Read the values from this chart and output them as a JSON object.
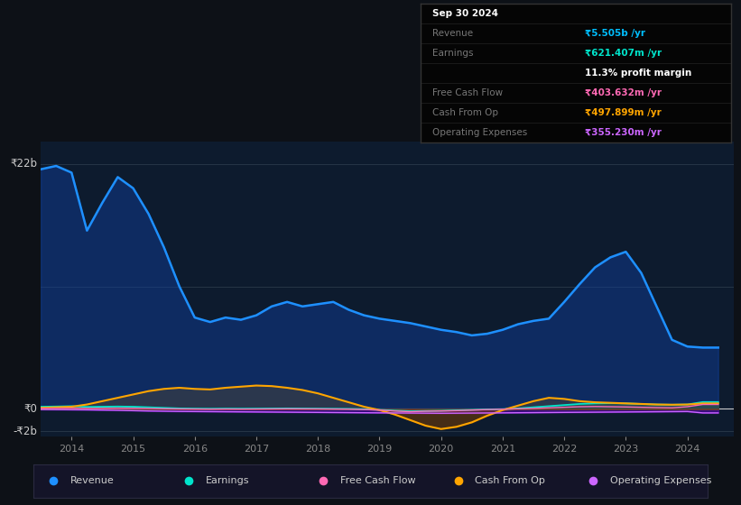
{
  "background_color": "#0d1117",
  "plot_bg_color": "#0d1b2e",
  "ylabel_top": "₹22b",
  "ylabel_zero": "₹0",
  "ylabel_neg": "-₹2b",
  "x_ticks": [
    2014,
    2015,
    2016,
    2017,
    2018,
    2019,
    2020,
    2021,
    2022,
    2023,
    2024
  ],
  "ylim_min": -2500000000,
  "ylim_max": 24000000000,
  "xlim_min": 2013.5,
  "xlim_max": 2024.75,
  "info_box": {
    "date": "Sep 30 2024",
    "revenue_label": "Revenue",
    "revenue_val": "₹5.505b /yr",
    "revenue_color": "#00bfff",
    "earnings_label": "Earnings",
    "earnings_val": "₹621.407m /yr",
    "earnings_color": "#00e5cc",
    "margin_val": "11.3% profit margin",
    "fcf_label": "Free Cash Flow",
    "fcf_val": "₹403.632m /yr",
    "fcf_color": "#ff69b4",
    "cashop_label": "Cash From Op",
    "cashop_val": "₹497.899m /yr",
    "cashop_color": "#ffa500",
    "opex_label": "Operating Expenses",
    "opex_val": "₹355.230m /yr",
    "opex_color": "#cc66ff",
    "box_bg": "#050505",
    "box_border": "#333333",
    "label_color": "#777777",
    "title_color": "#ffffff"
  },
  "legend": [
    {
      "label": "Revenue",
      "color": "#1e90ff"
    },
    {
      "label": "Earnings",
      "color": "#00e5cc"
    },
    {
      "label": "Free Cash Flow",
      "color": "#ff69b4"
    },
    {
      "label": "Cash From Op",
      "color": "#ffa500"
    },
    {
      "label": "Operating Expenses",
      "color": "#cc66ff"
    }
  ],
  "years": [
    2013.5,
    2013.75,
    2014.0,
    2014.25,
    2014.5,
    2014.75,
    2015.0,
    2015.25,
    2015.5,
    2015.75,
    2016.0,
    2016.25,
    2016.5,
    2016.75,
    2017.0,
    2017.25,
    2017.5,
    2017.75,
    2018.0,
    2018.25,
    2018.5,
    2018.75,
    2019.0,
    2019.25,
    2019.5,
    2019.75,
    2020.0,
    2020.25,
    2020.5,
    2020.75,
    2021.0,
    2021.25,
    2021.5,
    2021.75,
    2022.0,
    2022.25,
    2022.5,
    2022.75,
    2023.0,
    2023.25,
    2023.5,
    2023.75,
    2024.0,
    2024.25,
    2024.5
  ],
  "revenue": [
    21500000000,
    21800000000,
    21200000000,
    16000000000,
    18500000000,
    20800000000,
    19800000000,
    17500000000,
    14500000000,
    11000000000,
    8200000000,
    7800000000,
    8200000000,
    8000000000,
    8400000000,
    9200000000,
    9600000000,
    9200000000,
    9400000000,
    9600000000,
    8900000000,
    8400000000,
    8100000000,
    7900000000,
    7700000000,
    7400000000,
    7100000000,
    6900000000,
    6600000000,
    6750000000,
    7100000000,
    7600000000,
    7900000000,
    8100000000,
    9600000000,
    11200000000,
    12700000000,
    13600000000,
    14100000000,
    12200000000,
    9200000000,
    6200000000,
    5600000000,
    5505000000,
    5505000000
  ],
  "earnings": [
    200000000,
    220000000,
    250000000,
    180000000,
    200000000,
    220000000,
    200000000,
    150000000,
    100000000,
    50000000,
    30000000,
    20000000,
    30000000,
    25000000,
    30000000,
    40000000,
    50000000,
    40000000,
    30000000,
    20000000,
    10000000,
    -20000000,
    -80000000,
    -150000000,
    -200000000,
    -180000000,
    -160000000,
    -120000000,
    -80000000,
    -40000000,
    -20000000,
    50000000,
    150000000,
    250000000,
    350000000,
    450000000,
    500000000,
    520000000,
    500000000,
    450000000,
    400000000,
    380000000,
    400000000,
    621000000,
    621000000
  ],
  "free_cash_flow": [
    50000000,
    60000000,
    70000000,
    50000000,
    60000000,
    70000000,
    60000000,
    40000000,
    20000000,
    0,
    -10000000,
    -20000000,
    -10000000,
    -15000000,
    -10000000,
    0,
    10000000,
    5000000,
    0,
    -10000000,
    -20000000,
    -50000000,
    -100000000,
    -180000000,
    -250000000,
    -200000000,
    -180000000,
    -150000000,
    -100000000,
    -50000000,
    -20000000,
    20000000,
    50000000,
    100000000,
    150000000,
    200000000,
    220000000,
    200000000,
    180000000,
    150000000,
    120000000,
    100000000,
    200000000,
    403000000,
    403000000
  ],
  "cash_from_op": [
    100000000,
    150000000,
    200000000,
    400000000,
    700000000,
    1000000000,
    1300000000,
    1600000000,
    1800000000,
    1900000000,
    1800000000,
    1750000000,
    1900000000,
    2000000000,
    2100000000,
    2050000000,
    1900000000,
    1700000000,
    1400000000,
    1000000000,
    600000000,
    200000000,
    -100000000,
    -500000000,
    -1000000000,
    -1500000000,
    -1800000000,
    -1600000000,
    -1200000000,
    -600000000,
    -100000000,
    300000000,
    700000000,
    1000000000,
    900000000,
    700000000,
    600000000,
    550000000,
    500000000,
    450000000,
    400000000,
    380000000,
    400000000,
    497000000,
    497000000
  ],
  "operating_expenses": [
    -50000000,
    -60000000,
    -70000000,
    -80000000,
    -100000000,
    -120000000,
    -150000000,
    -180000000,
    -200000000,
    -220000000,
    -230000000,
    -240000000,
    -250000000,
    -260000000,
    -270000000,
    -280000000,
    -290000000,
    -300000000,
    -310000000,
    -320000000,
    -330000000,
    -340000000,
    -350000000,
    -360000000,
    -370000000,
    -380000000,
    -390000000,
    -380000000,
    -370000000,
    -360000000,
    -350000000,
    -340000000,
    -330000000,
    -320000000,
    -310000000,
    -300000000,
    -290000000,
    -280000000,
    -270000000,
    -260000000,
    -250000000,
    -240000000,
    -230000000,
    -355000000,
    -355000000
  ]
}
